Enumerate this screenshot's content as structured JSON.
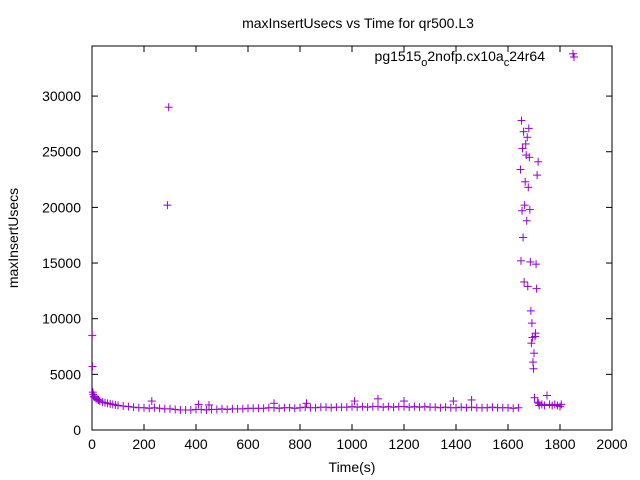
{
  "chart_data": {
    "type": "scatter",
    "title": "maxInsertUsecs vs Time for qr500.L3",
    "xlabel": "Time(s)",
    "ylabel": "maxInsertUsecs",
    "xlim": [
      0,
      2000
    ],
    "ylim": [
      0,
      34500
    ],
    "x_ticks": [
      "0",
      "200",
      "400",
      "600",
      "800",
      "1000",
      "1200",
      "1400",
      "1600",
      "1800",
      "2000"
    ],
    "y_ticks": [
      "0",
      "5000",
      "10000",
      "15000",
      "20000",
      "25000",
      "30000"
    ],
    "grid": false,
    "legend_position": "top-right",
    "marker": "plus",
    "series": [
      {
        "name": "pg1515_o2nofp.cx10a_c24r64",
        "legend": {
          "base1": "pg1515",
          "sub1": "o",
          "mid": "2nofp.cx10a",
          "sub2": "c",
          "end": "24r64"
        },
        "color": "#9400d3",
        "points": [
          [
            1,
            8500
          ],
          [
            2,
            5700
          ],
          [
            3,
            3400
          ],
          [
            5,
            3200
          ],
          [
            7,
            3000
          ],
          [
            10,
            2950
          ],
          [
            15,
            2850
          ],
          [
            20,
            2750
          ],
          [
            25,
            2700
          ],
          [
            30,
            2600
          ],
          [
            40,
            2500
          ],
          [
            50,
            2450
          ],
          [
            60,
            2400
          ],
          [
            70,
            2350
          ],
          [
            80,
            2300
          ],
          [
            90,
            2250
          ],
          [
            100,
            2200
          ],
          [
            120,
            2150
          ],
          [
            140,
            2100
          ],
          [
            160,
            2050
          ],
          [
            180,
            2000
          ],
          [
            200,
            2000
          ],
          [
            220,
            1950
          ],
          [
            230,
            2600
          ],
          [
            240,
            2000
          ],
          [
            260,
            1950
          ],
          [
            280,
            1900
          ],
          [
            290,
            20200
          ],
          [
            295,
            29000
          ],
          [
            300,
            1900
          ],
          [
            320,
            1850
          ],
          [
            340,
            1800
          ],
          [
            360,
            1800
          ],
          [
            380,
            1800
          ],
          [
            400,
            1850
          ],
          [
            410,
            2300
          ],
          [
            420,
            1850
          ],
          [
            440,
            1800
          ],
          [
            450,
            2250
          ],
          [
            460,
            1850
          ],
          [
            480,
            1850
          ],
          [
            500,
            1900
          ],
          [
            520,
            1850
          ],
          [
            540,
            1900
          ],
          [
            560,
            1900
          ],
          [
            580,
            1900
          ],
          [
            600,
            1950
          ],
          [
            620,
            1950
          ],
          [
            640,
            1950
          ],
          [
            660,
            1950
          ],
          [
            680,
            2000
          ],
          [
            700,
            2000
          ],
          [
            700,
            2400
          ],
          [
            720,
            1950
          ],
          [
            740,
            2000
          ],
          [
            760,
            2000
          ],
          [
            780,
            1950
          ],
          [
            800,
            2000
          ],
          [
            820,
            2050
          ],
          [
            825,
            2400
          ],
          [
            840,
            2000
          ],
          [
            860,
            2000
          ],
          [
            880,
            2050
          ],
          [
            900,
            2050
          ],
          [
            920,
            2000
          ],
          [
            940,
            2050
          ],
          [
            960,
            2050
          ],
          [
            980,
            2050
          ],
          [
            1000,
            2100
          ],
          [
            1010,
            2600
          ],
          [
            1020,
            2050
          ],
          [
            1040,
            2100
          ],
          [
            1060,
            2050
          ],
          [
            1080,
            2100
          ],
          [
            1100,
            2100
          ],
          [
            1100,
            2800
          ],
          [
            1120,
            2050
          ],
          [
            1140,
            2100
          ],
          [
            1160,
            2050
          ],
          [
            1180,
            2100
          ],
          [
            1200,
            2100
          ],
          [
            1200,
            2600
          ],
          [
            1220,
            2050
          ],
          [
            1240,
            2100
          ],
          [
            1260,
            2050
          ],
          [
            1280,
            2100
          ],
          [
            1300,
            2050
          ],
          [
            1320,
            2050
          ],
          [
            1340,
            2000
          ],
          [
            1360,
            2050
          ],
          [
            1380,
            2000
          ],
          [
            1390,
            2600
          ],
          [
            1400,
            2000
          ],
          [
            1420,
            2050
          ],
          [
            1440,
            2000
          ],
          [
            1460,
            2050
          ],
          [
            1460,
            2700
          ],
          [
            1480,
            2000
          ],
          [
            1500,
            2000
          ],
          [
            1520,
            2000
          ],
          [
            1540,
            2050
          ],
          [
            1560,
            2000
          ],
          [
            1580,
            2000
          ],
          [
            1600,
            2000
          ],
          [
            1620,
            1950
          ],
          [
            1640,
            2000
          ],
          [
            1648,
            23400
          ],
          [
            1650,
            15200
          ],
          [
            1652,
            27800
          ],
          [
            1654,
            19700
          ],
          [
            1656,
            25300
          ],
          [
            1658,
            17300
          ],
          [
            1660,
            26800
          ],
          [
            1662,
            13300
          ],
          [
            1664,
            20200
          ],
          [
            1666,
            22300
          ],
          [
            1668,
            25700
          ],
          [
            1670,
            24700
          ],
          [
            1672,
            18800
          ],
          [
            1674,
            26300
          ],
          [
            1676,
            12900
          ],
          [
            1678,
            21800
          ],
          [
            1680,
            27100
          ],
          [
            1682,
            24500
          ],
          [
            1684,
            19800
          ],
          [
            1686,
            15100
          ],
          [
            1688,
            10700
          ],
          [
            1690,
            7800
          ],
          [
            1692,
            9600
          ],
          [
            1694,
            8300
          ],
          [
            1696,
            6100
          ],
          [
            1698,
            5500
          ],
          [
            1700,
            6900
          ],
          [
            1702,
            2900
          ],
          [
            1704,
            8400
          ],
          [
            1706,
            8700
          ],
          [
            1708,
            14900
          ],
          [
            1710,
            12700
          ],
          [
            1712,
            22900
          ],
          [
            1714,
            2500
          ],
          [
            1716,
            24100
          ],
          [
            1718,
            2400
          ],
          [
            1720,
            2200
          ],
          [
            1730,
            2300
          ],
          [
            1740,
            2200
          ],
          [
            1750,
            3100
          ],
          [
            1760,
            2300
          ],
          [
            1770,
            2200
          ],
          [
            1780,
            2300
          ],
          [
            1790,
            2200
          ],
          [
            1800,
            2100
          ],
          [
            1805,
            2300
          ],
          [
            1850,
            33800
          ]
        ]
      }
    ]
  }
}
